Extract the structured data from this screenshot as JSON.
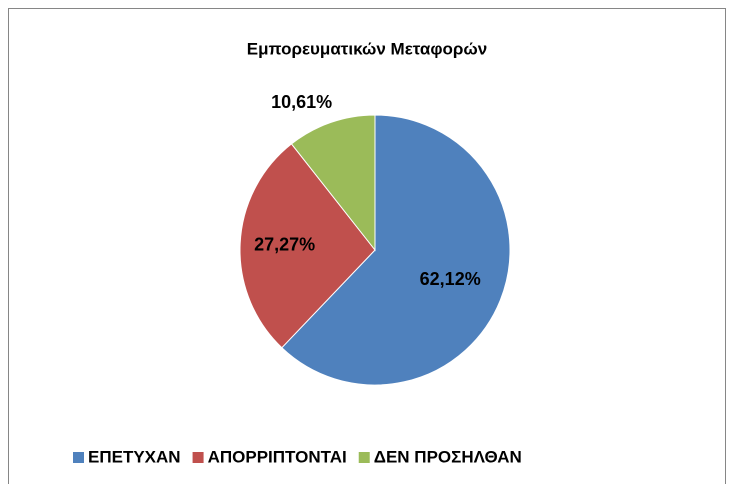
{
  "chart_data": {
    "type": "pie",
    "title": "Εμπορευματικών Μεταφορών",
    "categories": [
      "ΕΠΕΤΥΧΑΝ",
      "ΑΠΟΡΡΙΠΤΟΝΤΑΙ",
      "ΔΕΝ ΠΡΟΣΗΛΘΑΝ"
    ],
    "values": [
      62.12,
      27.27,
      10.61
    ],
    "value_labels": [
      "62,12%",
      "27,27%",
      "10,61%"
    ],
    "colors": [
      "#4f81bd",
      "#c0504d",
      "#9bbb59"
    ],
    "legend": "bottom"
  }
}
